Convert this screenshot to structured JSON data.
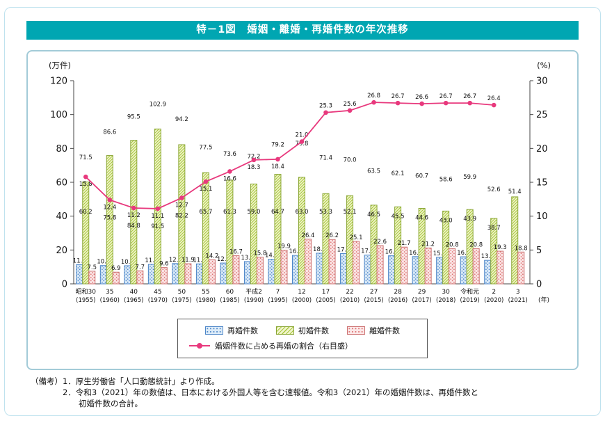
{
  "page": {
    "title": "特－1図　婚姻・離婚・再婚件数の年次推移",
    "accent_color": "#00a6b2"
  },
  "axes": {
    "left_unit": "(万件)",
    "right_unit": "(%)",
    "x_unit": "(年)"
  },
  "legend": {
    "remarriage": "再婚件数",
    "first_marriage": "初婚件数",
    "divorce": "離婚件数",
    "rate": "婚姻件数に占める再婚の割合（右目盛）"
  },
  "notes": {
    "label": "（備考）",
    "line1": "1．厚生労働省「人口動態統計」より作成。",
    "line2": "2．令和3（2021）年の数値は、日本における外国人等を含む速報値。令和3（2021）年の婚姻件数は、再婚件数と",
    "line3": "初婚件数の合計。"
  },
  "chart_data": {
    "type": "bar",
    "subtype": "grouped bars + line (right axis)",
    "categories_era": [
      "昭和30",
      "35",
      "40",
      "45",
      "50",
      "55",
      "60",
      "平成2",
      "7",
      "12",
      "17",
      "22",
      "27",
      "28",
      "29",
      "30",
      "令和元",
      "2",
      "3"
    ],
    "categories_year": [
      "(1955)",
      "(1960)",
      "(1965)",
      "(1970)",
      "(1975)",
      "(1980)",
      "(1985)",
      "(1990)",
      "(1995)",
      "(2000)",
      "(2005)",
      "(2010)",
      "(2015)",
      "(2016)",
      "(2017)",
      "(2018)",
      "(2019)",
      "(2020)",
      "(2021)"
    ],
    "series": [
      {
        "name": "再婚件数",
        "type": "bar",
        "axis": "left",
        "values": [
          11.3,
          10.8,
          10.7,
          11.5,
          12.0,
          11.8,
          12.3,
          13.2,
          14.5,
          16.8,
          18.1,
          17.9,
          17.0,
          16.6,
          16.1,
          15.7,
          16.0,
          13.9,
          null
        ]
      },
      {
        "name": "初婚件数",
        "type": "bar",
        "axis": "left",
        "values": [
          60.2,
          75.8,
          84.8,
          91.5,
          82.2,
          65.7,
          61.3,
          59.0,
          64.7,
          63.0,
          53.3,
          52.1,
          46.5,
          45.5,
          44.6,
          43.0,
          43.9,
          38.7,
          51.4
        ]
      },
      {
        "name": "離婚件数",
        "type": "bar",
        "axis": "left",
        "values": [
          7.5,
          6.9,
          7.7,
          9.6,
          11.9,
          14.2,
          16.7,
          15.8,
          19.9,
          26.4,
          26.2,
          25.1,
          22.6,
          21.7,
          21.2,
          20.8,
          20.8,
          19.3,
          18.8
        ]
      },
      {
        "name": "婚姻件数に占める再婚の割合（右目盛）",
        "type": "line",
        "axis": "right",
        "values": [
          15.8,
          12.4,
          11.2,
          11.1,
          12.7,
          15.1,
          16.6,
          18.3,
          18.4,
          21.0,
          25.3,
          25.6,
          26.8,
          26.7,
          26.6,
          26.7,
          26.7,
          26.4,
          null
        ]
      }
    ],
    "marriage_totals": [
      71.5,
      86.6,
      95.5,
      102.9,
      94.2,
      77.5,
      73.6,
      72.2,
      79.2,
      79.8,
      71.4,
      70.0,
      63.5,
      62.1,
      60.7,
      58.6,
      59.9,
      52.6,
      51.4
    ],
    "left_axis": {
      "min": 0,
      "max": 120,
      "step": 20
    },
    "right_axis": {
      "min": 0,
      "max": 30,
      "step": 5
    },
    "grid": false,
    "legend_position": "bottom",
    "colors": {
      "remarriage": "#4d86c8",
      "first_marriage": "#8aa637",
      "divorce": "#cc7070",
      "line": "#e8397d"
    }
  }
}
